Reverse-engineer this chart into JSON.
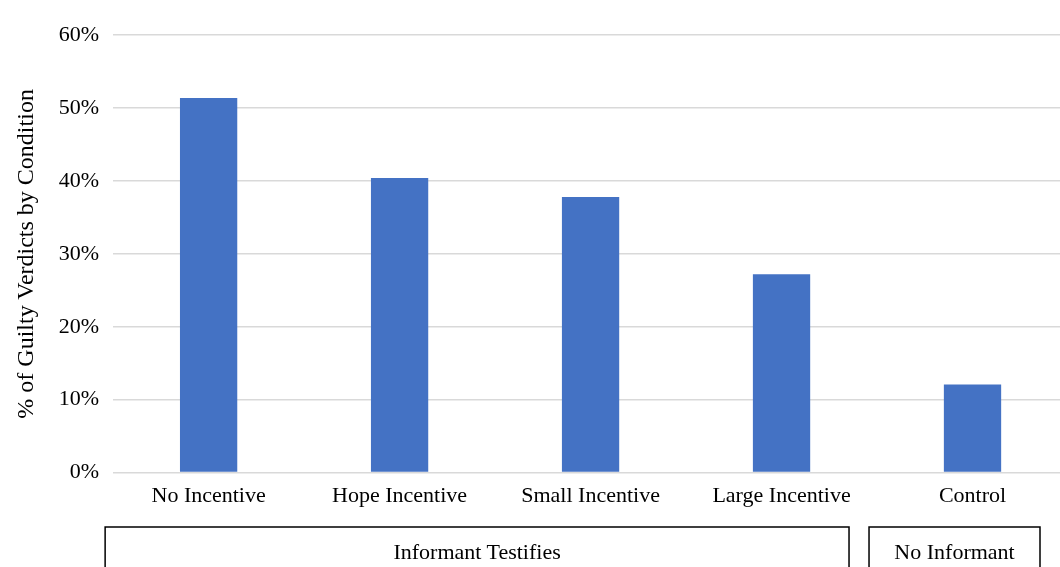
{
  "chart_data": {
    "type": "bar",
    "ylabel": "% of Guilty Verdicts by Condition",
    "categories": [
      "No Incentive",
      "Hope Incentive",
      "Small Incentive",
      "Large Incentive",
      "Control"
    ],
    "values": [
      51.4,
      40.4,
      37.8,
      27.2,
      12.1
    ],
    "color": "#4472c4",
    "ylim": [
      0,
      60
    ],
    "yticks": [
      {
        "value": 0,
        "label": "0%"
      },
      {
        "value": 10,
        "label": "10%"
      },
      {
        "value": 20,
        "label": "20%"
      },
      {
        "value": 30,
        "label": "30%"
      },
      {
        "value": 40,
        "label": "40%"
      },
      {
        "value": 50,
        "label": "50%"
      },
      {
        "value": 60,
        "label": "60%"
      }
    ],
    "grid": "y",
    "annotations": [
      "Informant Testifies",
      "No Informant"
    ]
  }
}
